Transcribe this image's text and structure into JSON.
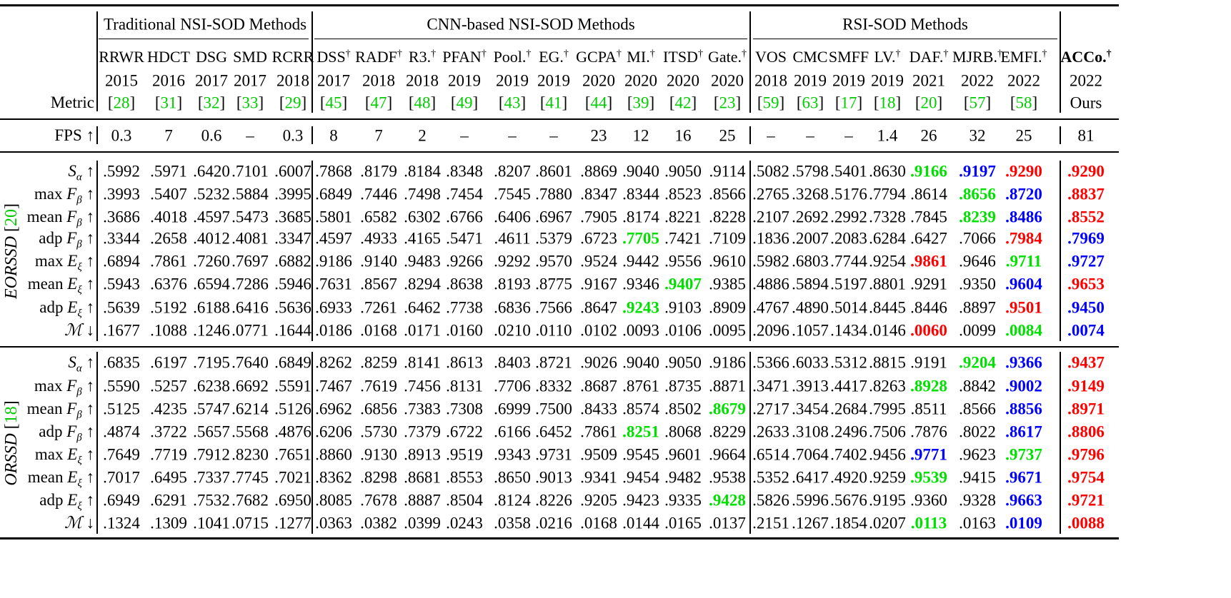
{
  "groups": [
    {
      "label": "Traditional NSI-SOD Methods",
      "start": 0,
      "count": 5
    },
    {
      "label": "CNN-based NSI-SOD Methods",
      "start": 5,
      "count": 10
    },
    {
      "label": "RSI-SOD Methods",
      "start": 15,
      "count": 7
    }
  ],
  "header_labels": {
    "metric": "Metric",
    "fps": "FPS ↑"
  },
  "methods": [
    {
      "name": "RRWR",
      "dagger": "",
      "year": "2015",
      "ref": "28"
    },
    {
      "name": "HDCT",
      "dagger": "",
      "year": "2016",
      "ref": "31"
    },
    {
      "name": "DSG",
      "dagger": "",
      "year": "2017",
      "ref": "32"
    },
    {
      "name": "SMD",
      "dagger": "",
      "year": "2017",
      "ref": "33"
    },
    {
      "name": "RCRR",
      "dagger": "",
      "year": "2018",
      "ref": "29"
    },
    {
      "name": "DSS",
      "dagger": "†",
      "year": "2017",
      "ref": "45"
    },
    {
      "name": "RADF",
      "dagger": "†",
      "year": "2018",
      "ref": "47"
    },
    {
      "name": "R3.",
      "dagger": "†",
      "year": "2018",
      "ref": "48"
    },
    {
      "name": "PFAN",
      "dagger": "†",
      "year": "2019",
      "ref": "49"
    },
    {
      "name": "Pool.",
      "dagger": "†",
      "year": "2019",
      "ref": "43"
    },
    {
      "name": "EG.",
      "dagger": "†",
      "year": "2019",
      "ref": "41"
    },
    {
      "name": "GCPA",
      "dagger": "†",
      "year": "2020",
      "ref": "44"
    },
    {
      "name": "MI.",
      "dagger": "†",
      "year": "2020",
      "ref": "39"
    },
    {
      "name": "ITSD",
      "dagger": "†",
      "year": "2020",
      "ref": "42"
    },
    {
      "name": "Gate.",
      "dagger": "†",
      "year": "2020",
      "ref": "23"
    },
    {
      "name": "VOS",
      "dagger": "",
      "year": "2018",
      "ref": "59"
    },
    {
      "name": "CMC",
      "dagger": "",
      "year": "2019",
      "ref": "63"
    },
    {
      "name": "SMFF",
      "dagger": "",
      "year": "2019",
      "ref": "17"
    },
    {
      "name": "LV.",
      "dagger": "†",
      "year": "2019",
      "ref": "18"
    },
    {
      "name": "DAF.",
      "dagger": "†",
      "year": "2021",
      "ref": "20"
    },
    {
      "name": "MJRB.",
      "dagger": "†",
      "year": "2022",
      "ref": "57"
    },
    {
      "name": "EMFI.",
      "dagger": "†",
      "year": "2022",
      "ref": "58"
    },
    {
      "name": "ACCo.",
      "dagger": "†",
      "year": "2022",
      "ref": "Ours",
      "bold": true
    }
  ],
  "fps": [
    "0.3",
    "7",
    "0.6",
    "–",
    "0.3",
    "8",
    "7",
    "2",
    "–",
    "–",
    "–",
    "23",
    "12",
    "16",
    "25",
    "–",
    "–",
    "–",
    "1.4",
    "26",
    "32",
    "25",
    "81"
  ],
  "colors": {
    "red": "#ff0000",
    "green": "#00e000",
    "blue": "#0000ff",
    "ref": "#00cc00"
  },
  "datasets": [
    {
      "name": "EORSSD",
      "ref": "20",
      "rows": [
        {
          "prefix": "",
          "sym": "S",
          "sub": "α",
          "arrow": "↑",
          "values": [
            ".5992",
            ".5971",
            ".6420",
            ".7101",
            ".6007",
            ".7868",
            ".8179",
            ".8184",
            ".8348",
            ".8207",
            ".8601",
            ".8869",
            ".9040",
            ".9050",
            ".9114",
            ".5082",
            ".5798",
            ".5401",
            ".8630",
            ".9166",
            ".9197",
            ".9290",
            ".9290"
          ],
          "colors": {
            "19": "green",
            "20": "blue",
            "21": "red",
            "22": "red"
          }
        },
        {
          "prefix": "max ",
          "sym": "F",
          "sub": "β",
          "arrow": "↑",
          "values": [
            ".3993",
            ".5407",
            ".5232",
            ".5884",
            ".3995",
            ".6849",
            ".7446",
            ".7498",
            ".7454",
            ".7545",
            ".7880",
            ".8347",
            ".8344",
            ".8523",
            ".8566",
            ".2765",
            ".3268",
            ".5176",
            ".7794",
            ".8614",
            ".8656",
            ".8720",
            ".8837"
          ],
          "colors": {
            "20": "green",
            "21": "blue",
            "22": "red"
          }
        },
        {
          "prefix": "mean ",
          "sym": "F",
          "sub": "β",
          "arrow": "↑",
          "values": [
            ".3686",
            ".4018",
            ".4597",
            ".5473",
            ".3685",
            ".5801",
            ".6582",
            ".6302",
            ".6766",
            ".6406",
            ".6967",
            ".7905",
            ".8174",
            ".8221",
            ".8228",
            ".2107",
            ".2692",
            ".2992",
            ".7328",
            ".7845",
            ".8239",
            ".8486",
            ".8552"
          ],
          "colors": {
            "20": "green",
            "21": "blue",
            "22": "red"
          }
        },
        {
          "prefix": "adp ",
          "sym": "F",
          "sub": "β",
          "arrow": "↑",
          "values": [
            ".3344",
            ".2658",
            ".4012",
            ".4081",
            ".3347",
            ".4597",
            ".4933",
            ".4165",
            ".5471",
            ".4611",
            ".5379",
            ".6723",
            ".7705",
            ".7421",
            ".7109",
            ".1836",
            ".2007",
            ".2083",
            ".6284",
            ".6427",
            ".7066",
            ".7984",
            ".7969"
          ],
          "colors": {
            "12": "green",
            "21": "red",
            "22": "blue"
          }
        },
        {
          "prefix": "max ",
          "sym": "E",
          "sub": "ξ",
          "arrow": "↑",
          "values": [
            ".6894",
            ".7861",
            ".7260",
            ".7697",
            ".6882",
            ".9186",
            ".9140",
            ".9483",
            ".9266",
            ".9292",
            ".9570",
            ".9524",
            ".9442",
            ".9556",
            ".9610",
            ".5982",
            ".6803",
            ".7744",
            ".9254",
            ".9861",
            ".9646",
            ".9711",
            ".9727"
          ],
          "colors": {
            "19": "red",
            "21": "green",
            "22": "blue"
          }
        },
        {
          "prefix": "mean ",
          "sym": "E",
          "sub": "ξ",
          "arrow": "↑",
          "values": [
            ".5943",
            ".6376",
            ".6594",
            ".7286",
            ".5946",
            ".7631",
            ".8567",
            ".8294",
            ".8638",
            ".8193",
            ".8775",
            ".9167",
            ".9346",
            ".9407",
            ".9385",
            ".4886",
            ".5894",
            ".5197",
            ".8801",
            ".9291",
            ".9350",
            ".9604",
            ".9653"
          ],
          "colors": {
            "13": "green",
            "21": "blue",
            "22": "red"
          }
        },
        {
          "prefix": "adp ",
          "sym": "E",
          "sub": "ξ",
          "arrow": "↑",
          "values": [
            ".5639",
            ".5192",
            ".6188",
            ".6416",
            ".5636",
            ".6933",
            ".7261",
            ".6462",
            ".7738",
            ".6836",
            ".7566",
            ".8647",
            ".9243",
            ".9103",
            ".8909",
            ".4767",
            ".4890",
            ".5014",
            ".8445",
            ".8446",
            ".8897",
            ".9501",
            ".9450"
          ],
          "colors": {
            "12": "green",
            "21": "red",
            "22": "blue"
          }
        },
        {
          "prefix": "",
          "sym": "ℳ",
          "sub": "",
          "arrow": "↓",
          "values": [
            ".1677",
            ".1088",
            ".1246",
            ".0771",
            ".1644",
            ".0186",
            ".0168",
            ".0171",
            ".0160",
            ".0210",
            ".0110",
            ".0102",
            ".0093",
            ".0106",
            ".0095",
            ".2096",
            ".1057",
            ".1434",
            ".0146",
            ".0060",
            ".0099",
            ".0084",
            ".0074"
          ],
          "colors": {
            "19": "red",
            "21": "green",
            "22": "blue"
          }
        }
      ]
    },
    {
      "name": "ORSSD",
      "ref": "18",
      "rows": [
        {
          "prefix": "",
          "sym": "S",
          "sub": "α",
          "arrow": "↑",
          "values": [
            ".6835",
            ".6197",
            ".7195",
            ".7640",
            ".6849",
            ".8262",
            ".8259",
            ".8141",
            ".8613",
            ".8403",
            ".8721",
            ".9026",
            ".9040",
            ".9050",
            ".9186",
            ".5366",
            ".6033",
            ".5312",
            ".8815",
            ".9191",
            ".9204",
            ".9366",
            ".9437"
          ],
          "colors": {
            "20": "green",
            "21": "blue",
            "22": "red"
          }
        },
        {
          "prefix": "max ",
          "sym": "F",
          "sub": "β",
          "arrow": "↑",
          "values": [
            ".5590",
            ".5257",
            ".6238",
            ".6692",
            ".5591",
            ".7467",
            ".7619",
            ".7456",
            ".8131",
            ".7706",
            ".8332",
            ".8687",
            ".8761",
            ".8735",
            ".8871",
            ".3471",
            ".3913",
            ".4417",
            ".8263",
            ".8928",
            ".8842",
            ".9002",
            ".9149"
          ],
          "colors": {
            "19": "green",
            "21": "blue",
            "22": "red"
          }
        },
        {
          "prefix": "mean ",
          "sym": "F",
          "sub": "β",
          "arrow": "↑",
          "values": [
            ".5125",
            ".4235",
            ".5747",
            ".6214",
            ".5126",
            ".6962",
            ".6856",
            ".7383",
            ".7308",
            ".6999",
            ".7500",
            ".8433",
            ".8574",
            ".8502",
            ".8679",
            ".2717",
            ".3454",
            ".2684",
            ".7995",
            ".8511",
            ".8566",
            ".8856",
            ".8971"
          ],
          "colors": {
            "14": "green",
            "21": "blue",
            "22": "red"
          }
        },
        {
          "prefix": "adp ",
          "sym": "F",
          "sub": "β",
          "arrow": "↑",
          "values": [
            ".4874",
            ".3722",
            ".5657",
            ".5568",
            ".4876",
            ".6206",
            ".5730",
            ".7379",
            ".6722",
            ".6166",
            ".6452",
            ".7861",
            ".8251",
            ".8068",
            ".8229",
            ".2633",
            ".3108",
            ".2496",
            ".7506",
            ".7876",
            ".8022",
            ".8617",
            ".8806"
          ],
          "colors": {
            "12": "green",
            "21": "blue",
            "22": "red"
          }
        },
        {
          "prefix": "max ",
          "sym": "E",
          "sub": "ξ",
          "arrow": "↑",
          "values": [
            ".7649",
            ".7719",
            ".7912",
            ".8230",
            ".7651",
            ".8860",
            ".9130",
            ".8913",
            ".9519",
            ".9343",
            ".9731",
            ".9509",
            ".9545",
            ".9601",
            ".9664",
            ".6514",
            ".7064",
            ".7402",
            ".9456",
            ".9771",
            ".9623",
            ".9737",
            ".9796"
          ],
          "colors": {
            "19": "blue",
            "21": "green",
            "22": "red"
          }
        },
        {
          "prefix": "mean ",
          "sym": "E",
          "sub": "ξ",
          "arrow": "↑",
          "values": [
            ".7017",
            ".6495",
            ".7337",
            ".7745",
            ".7021",
            ".8362",
            ".8298",
            ".8681",
            ".8553",
            ".8650",
            ".9013",
            ".9341",
            ".9454",
            ".9482",
            ".9538",
            ".5352",
            ".6417",
            ".4920",
            ".9259",
            ".9539",
            ".9415",
            ".9671",
            ".9754"
          ],
          "colors": {
            "19": "green",
            "21": "blue",
            "22": "red"
          }
        },
        {
          "prefix": "adp ",
          "sym": "E",
          "sub": "ξ",
          "arrow": "↑",
          "values": [
            ".6949",
            ".6291",
            ".7532",
            ".7682",
            ".6950",
            ".8085",
            ".7678",
            ".8887",
            ".8504",
            ".8124",
            ".8226",
            ".9205",
            ".9423",
            ".9335",
            ".9428",
            ".5826",
            ".5996",
            ".5676",
            ".9195",
            ".9360",
            ".9328",
            ".9663",
            ".9721"
          ],
          "colors": {
            "14": "green",
            "21": "blue",
            "22": "red"
          }
        },
        {
          "prefix": "",
          "sym": "ℳ",
          "sub": "",
          "arrow": "↓",
          "values": [
            ".1324",
            ".1309",
            ".1041",
            ".0715",
            ".1277",
            ".0363",
            ".0382",
            ".0399",
            ".0243",
            ".0358",
            ".0216",
            ".0168",
            ".0144",
            ".0165",
            ".0137",
            ".2151",
            ".1267",
            ".1854",
            ".0207",
            ".0113",
            ".0163",
            ".0109",
            ".0088"
          ],
          "colors": {
            "19": "green",
            "21": "blue",
            "22": "red"
          }
        }
      ]
    }
  ]
}
